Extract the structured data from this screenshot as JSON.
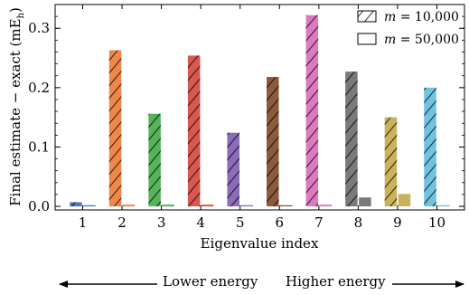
{
  "chart_data": {
    "type": "bar",
    "xlabel": "Eigenvalue index",
    "ylabel": "Final estimate − exact (mE",
    "ylabel_sub": "h",
    "ylabel_close": ")",
    "categories": [
      "1",
      "2",
      "3",
      "4",
      "5",
      "6",
      "7",
      "8",
      "9",
      "10"
    ],
    "colors": [
      "#4878b8",
      "#f0874a",
      "#55b35a",
      "#d85850",
      "#8c6bb8",
      "#8c5a3c",
      "#dc7ac0",
      "#7a7a7a",
      "#c9b35a",
      "#6ec3e0"
    ],
    "series": [
      {
        "name": "m = 10,000",
        "pattern": "hatched",
        "values": [
          0.007,
          0.263,
          0.156,
          0.254,
          0.124,
          0.218,
          0.322,
          0.227,
          0.15,
          0.2
        ]
      },
      {
        "name": "m = 50,000",
        "pattern": "solid",
        "values": [
          0.002,
          0.003,
          0.003,
          0.003,
          0.002,
          0.002,
          0.003,
          0.015,
          0.021,
          0.002
        ]
      }
    ],
    "ylim": [
      -0.006,
      0.34
    ],
    "yticks": [
      0.0,
      0.1,
      0.2,
      0.3
    ],
    "ytick_labels": [
      "0.0",
      "0.1",
      "0.2",
      "0.3"
    ],
    "legend": {
      "position": "top-right",
      "entries": [
        {
          "var": "m",
          "value": "10,000"
        },
        {
          "var": "m",
          "value": "50,000"
        }
      ]
    },
    "grid": false
  },
  "annotations": {
    "lower": "Lower energy",
    "higher": "Higher energy"
  }
}
